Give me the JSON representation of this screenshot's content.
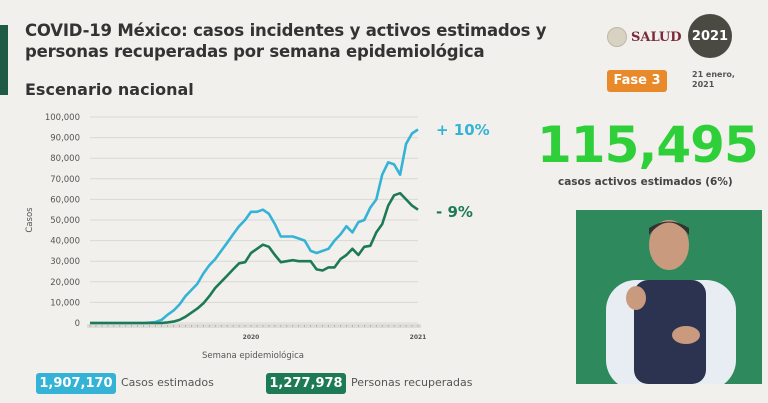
{
  "header": {
    "title_line1": "COVID-19 México: casos incidentes y activos estimados y",
    "title_line2": "personas recuperadas por semana epidemiológica",
    "subtitle": "Escenario nacional",
    "salud_logo": "SALUD",
    "logo_2021": "2021",
    "phase": "Fase 3",
    "date_line1": "21 enero,",
    "date_line2": "2021"
  },
  "kpi": {
    "value": "115,495",
    "label": "casos activos estimados (6%)"
  },
  "legend": [
    {
      "value": "1,907,170",
      "label": "Casos estimados",
      "color": "#35b3d6"
    },
    {
      "value": "1,277,978",
      "label": "Personas recuperadas",
      "color": "#1e7a55"
    }
  ],
  "chart_data": {
    "type": "line",
    "ylabel": "Casos",
    "xlabel": "Semana epidemiológica",
    "ylim": [
      0,
      100000
    ],
    "yticks": [
      0,
      10000,
      20000,
      30000,
      40000,
      50000,
      60000,
      70000,
      80000,
      90000,
      100000
    ],
    "ytick_labels": [
      "0",
      "10,000",
      "20,000",
      "30,000",
      "40,000",
      "50,000",
      "60,000",
      "70,000",
      "80,000",
      "90,000",
      "100,000"
    ],
    "x_year_labels": [
      {
        "index": 27,
        "label": "2020"
      },
      {
        "index": 55,
        "label": "2021"
      }
    ],
    "grid": true,
    "series": [
      {
        "name": "Casos estimados",
        "color": "#35b3d6",
        "end_label": "+ 10%",
        "values": [
          0,
          0,
          0,
          0,
          0,
          0,
          0,
          0,
          0,
          0,
          200,
          500,
          1500,
          4000,
          6000,
          9000,
          13000,
          16000,
          19000,
          24000,
          28000,
          31000,
          35000,
          39000,
          43000,
          47000,
          50000,
          54000,
          54000,
          55000,
          53000,
          48000,
          42000,
          42000,
          42000,
          41000,
          40000,
          35000,
          34000,
          35000,
          36000,
          40000,
          43000,
          47000,
          44000,
          49000,
          50000,
          56000,
          60000,
          72000,
          78000,
          77000,
          72000,
          87000,
          92000,
          94000
        ]
      },
      {
        "name": "Personas recuperadas",
        "color": "#1e7a55",
        "end_label": "- 9%",
        "values": [
          0,
          0,
          0,
          0,
          0,
          0,
          0,
          0,
          0,
          0,
          0,
          0,
          0,
          300,
          700,
          1500,
          3000,
          5000,
          7000,
          9500,
          13000,
          17000,
          20000,
          23000,
          26000,
          29000,
          29500,
          34000,
          36000,
          38000,
          37000,
          33000,
          29500,
          30000,
          30500,
          30000,
          30000,
          30000,
          26000,
          25500,
          27000,
          27000,
          31000,
          33000,
          36000,
          33000,
          37000,
          37500,
          44000,
          48000,
          57000,
          62000,
          63000,
          60000,
          57000,
          55000
        ]
      }
    ]
  }
}
